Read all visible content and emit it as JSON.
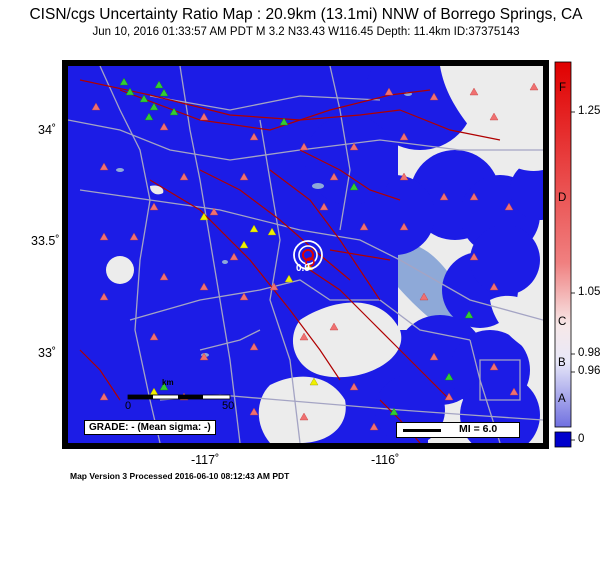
{
  "title": "CISN/cgs Uncertainty Ratio Map : 20.9km (13.1mi) NNW of Borrego Springs, CA",
  "subtitle": "Jun 10, 2016 01:33:57 AM PDT   M 3.2   N33.43 W116.45   Depth: 11.4km   ID:37375143",
  "axes": {
    "lat_ticks": [
      "34˚",
      "33.5˚",
      "33˚"
    ],
    "lon_ticks": [
      "-117˚",
      "-116˚"
    ]
  },
  "colorbar": {
    "grade_labels": [
      "F",
      "D",
      "C",
      "B",
      "A"
    ],
    "value_labels": [
      "1.25",
      "1.05",
      "0.98",
      "0.96",
      "0"
    ],
    "top_color": "#e00000",
    "bottom_color": "#0000cc"
  },
  "grade_box": "GRADE: - (Mean sigma: -)",
  "mi_legend": "MI = 6.0",
  "scale_bar": {
    "start": "0",
    "end": "50",
    "unit": "km"
  },
  "epicenter_label": "0.9",
  "footer": "Map Version 3 Processed 2016-06-10 08:12:43 AM PDT",
  "colors": {
    "uncertainty_blue": "#1c1ce6",
    "land_gray": "#ececec",
    "water": "#8ea9d8",
    "fault": "#b00000",
    "road": "#a4a4c4",
    "station_triangle": "#f07070",
    "station_green": "#33cc33",
    "station_yellow": "#f0f000"
  }
}
